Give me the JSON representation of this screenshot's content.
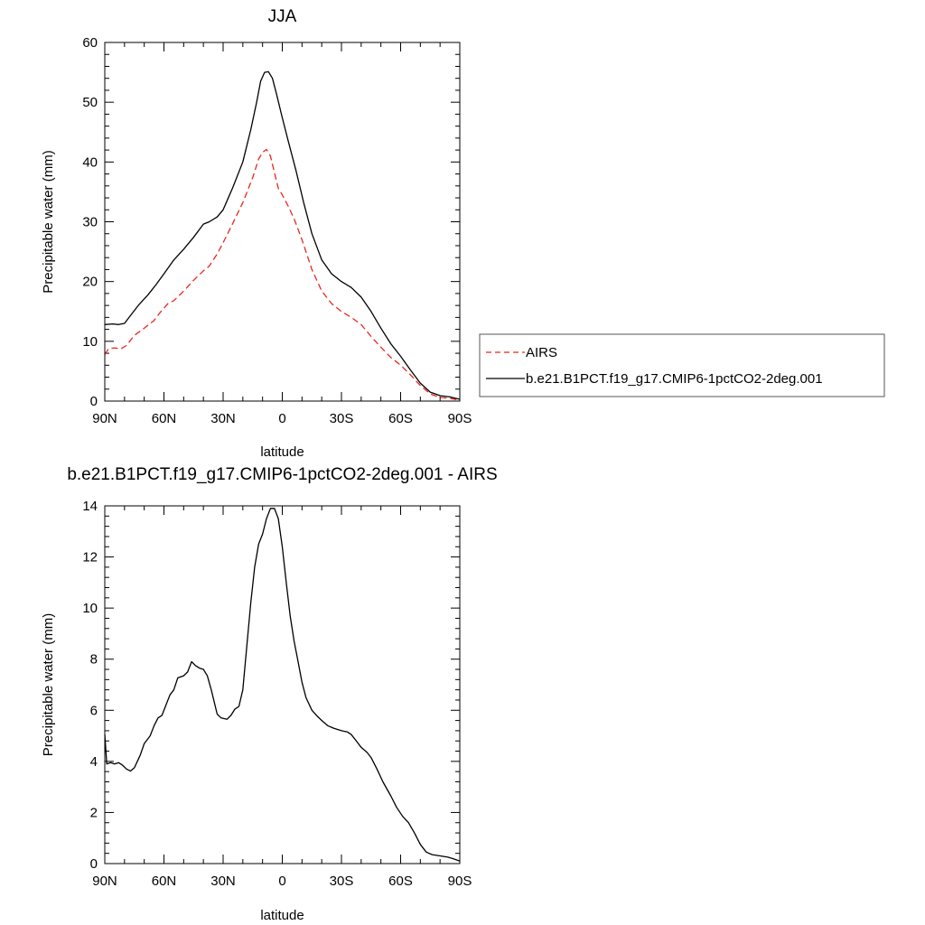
{
  "chart_data": [
    {
      "type": "line",
      "title": "JJA",
      "xlabel": "latitude",
      "ylabel": "Precipitable water (mm)",
      "xlim": [
        90,
        -90
      ],
      "ylim": [
        0,
        60
      ],
      "x_ticks": [
        90,
        60,
        30,
        0,
        -30,
        -60,
        -90
      ],
      "x_tick_labels": [
        "90N",
        "60N",
        "30N",
        "0",
        "30S",
        "60S",
        "90S"
      ],
      "y_ticks": [
        0,
        10,
        20,
        30,
        40,
        50,
        60
      ],
      "y_tick_labels": [
        "0",
        "10",
        "20",
        "30",
        "40",
        "50",
        "60"
      ],
      "legend": {
        "placement": "right"
      },
      "series": [
        {
          "name": "AIRS",
          "color": "#e8261f",
          "dash": "dashed",
          "points": [
            [
              90,
              7.8
            ],
            [
              88,
              8.8
            ],
            [
              85,
              8.9
            ],
            [
              82,
              8.7
            ],
            [
              79,
              9.3
            ],
            [
              75,
              11.0
            ],
            [
              70,
              12.2
            ],
            [
              65,
              13.5
            ],
            [
              62,
              14.8
            ],
            [
              58,
              16.3
            ],
            [
              55,
              16.8
            ],
            [
              50,
              18.4
            ],
            [
              45,
              20.2
            ],
            [
              40,
              21.8
            ],
            [
              37,
              22.6
            ],
            [
              33,
              24.6
            ],
            [
              30,
              26.5
            ],
            [
              25,
              29.8
            ],
            [
              20,
              33.2
            ],
            [
              15,
              37.4
            ],
            [
              12,
              40.5
            ],
            [
              10,
              41.6
            ],
            [
              8,
              42.1
            ],
            [
              6,
              41.0
            ],
            [
              4,
              38.2
            ],
            [
              2,
              35.6
            ],
            [
              0,
              34.5
            ],
            [
              -3,
              32.6
            ],
            [
              -6,
              30.5
            ],
            [
              -10,
              27.0
            ],
            [
              -15,
              22.0
            ],
            [
              -20,
              18.4
            ],
            [
              -25,
              16.3
            ],
            [
              -30,
              15.0
            ],
            [
              -35,
              14.0
            ],
            [
              -40,
              12.8
            ],
            [
              -45,
              10.8
            ],
            [
              -50,
              9.0
            ],
            [
              -55,
              7.3
            ],
            [
              -60,
              6.0
            ],
            [
              -65,
              4.4
            ],
            [
              -70,
              2.6
            ],
            [
              -75,
              1.2
            ],
            [
              -80,
              0.6
            ],
            [
              -85,
              0.45
            ],
            [
              -90,
              0.15
            ]
          ]
        },
        {
          "name": "b.e21.B1PCT.f19_g17.CMIP6-1pctCO2-2deg.001",
          "color": "#000000",
          "dash": "solid",
          "points": [
            [
              90,
              12.8
            ],
            [
              86,
              12.9
            ],
            [
              83,
              12.8
            ],
            [
              80,
              13.0
            ],
            [
              77,
              14.3
            ],
            [
              73,
              16.0
            ],
            [
              68,
              17.8
            ],
            [
              64,
              19.5
            ],
            [
              60,
              21.3
            ],
            [
              55,
              23.6
            ],
            [
              50,
              25.4
            ],
            [
              45,
              27.4
            ],
            [
              40,
              29.6
            ],
            [
              37,
              30.0
            ],
            [
              33,
              30.8
            ],
            [
              30,
              32.0
            ],
            [
              25,
              35.8
            ],
            [
              20,
              40.0
            ],
            [
              16,
              45.4
            ],
            [
              13,
              50.0
            ],
            [
              11,
              53.5
            ],
            [
              9,
              55.0
            ],
            [
              7,
              55.1
            ],
            [
              5,
              54.0
            ],
            [
              3,
              51.5
            ],
            [
              0,
              47.4
            ],
            [
              -3,
              43.5
            ],
            [
              -7,
              38.5
            ],
            [
              -11,
              33.0
            ],
            [
              -15,
              28.0
            ],
            [
              -20,
              23.6
            ],
            [
              -25,
              21.3
            ],
            [
              -30,
              20.0
            ],
            [
              -35,
              19.0
            ],
            [
              -40,
              17.4
            ],
            [
              -45,
              15.0
            ],
            [
              -50,
              12.2
            ],
            [
              -55,
              9.6
            ],
            [
              -60,
              7.5
            ],
            [
              -65,
              5.2
            ],
            [
              -70,
              3.0
            ],
            [
              -75,
              1.5
            ],
            [
              -80,
              0.9
            ],
            [
              -85,
              0.7
            ],
            [
              -90,
              0.3
            ]
          ]
        }
      ]
    },
    {
      "type": "line",
      "title": "b.e21.B1PCT.f19_g17.CMIP6-1pctCO2-2deg.001 - AIRS",
      "xlabel": "latitude",
      "ylabel": "Precipitable water (mm)",
      "xlim": [
        90,
        -90
      ],
      "ylim": [
        0,
        14
      ],
      "x_ticks": [
        90,
        60,
        30,
        0,
        -30,
        -60,
        -90
      ],
      "x_tick_labels": [
        "90N",
        "60N",
        "30N",
        "0",
        "30S",
        "60S",
        "90S"
      ],
      "y_ticks": [
        0,
        2,
        4,
        6,
        8,
        10,
        12,
        14
      ],
      "y_tick_labels": [
        "0",
        "2",
        "4",
        "6",
        "8",
        "10",
        "12",
        "14"
      ],
      "series": [
        {
          "color": "#000000",
          "dash": "solid",
          "points": [
            [
              90,
              5.05
            ],
            [
              89,
              3.9
            ],
            [
              87,
              3.95
            ],
            [
              85,
              3.9
            ],
            [
              83,
              3.95
            ],
            [
              81,
              3.85
            ],
            [
              79,
              3.7
            ],
            [
              77,
              3.62
            ],
            [
              75,
              3.75
            ],
            [
              72,
              4.25
            ],
            [
              70,
              4.7
            ],
            [
              67,
              5.0
            ],
            [
              65,
              5.4
            ],
            [
              63,
              5.7
            ],
            [
              61,
              5.8
            ],
            [
              59,
              6.2
            ],
            [
              57,
              6.6
            ],
            [
              55,
              6.8
            ],
            [
              53,
              7.27
            ],
            [
              50,
              7.35
            ],
            [
              48,
              7.5
            ],
            [
              46,
              7.9
            ],
            [
              44,
              7.75
            ],
            [
              42,
              7.65
            ],
            [
              40,
              7.6
            ],
            [
              38,
              7.35
            ],
            [
              36,
              6.8
            ],
            [
              33,
              5.85
            ],
            [
              31,
              5.7
            ],
            [
              28,
              5.65
            ],
            [
              26,
              5.8
            ],
            [
              24,
              6.05
            ],
            [
              22,
              6.15
            ],
            [
              20,
              6.8
            ],
            [
              18,
              8.5
            ],
            [
              16,
              10.2
            ],
            [
              14,
              11.6
            ],
            [
              12,
              12.5
            ],
            [
              10,
              12.9
            ],
            [
              8,
              13.5
            ],
            [
              6,
              13.9
            ],
            [
              4,
              13.9
            ],
            [
              2,
              13.5
            ],
            [
              0,
              12.4
            ],
            [
              -2,
              11.0
            ],
            [
              -4,
              9.7
            ],
            [
              -6,
              8.7
            ],
            [
              -8,
              7.9
            ],
            [
              -10,
              7.1
            ],
            [
              -12,
              6.5
            ],
            [
              -15,
              6.0
            ],
            [
              -18,
              5.75
            ],
            [
              -20,
              5.6
            ],
            [
              -23,
              5.4
            ],
            [
              -26,
              5.3
            ],
            [
              -30,
              5.2
            ],
            [
              -33,
              5.15
            ],
            [
              -35,
              5.05
            ],
            [
              -38,
              4.75
            ],
            [
              -40,
              4.55
            ],
            [
              -43,
              4.35
            ],
            [
              -45,
              4.15
            ],
            [
              -48,
              3.7
            ],
            [
              -51,
              3.2
            ],
            [
              -55,
              2.65
            ],
            [
              -58,
              2.2
            ],
            [
              -61,
              1.85
            ],
            [
              -64,
              1.6
            ],
            [
              -67,
              1.2
            ],
            [
              -70,
              0.75
            ],
            [
              -73,
              0.45
            ],
            [
              -76,
              0.35
            ],
            [
              -80,
              0.3
            ],
            [
              -84,
              0.25
            ],
            [
              -87,
              0.18
            ],
            [
              -90,
              0.1
            ]
          ]
        }
      ]
    }
  ]
}
